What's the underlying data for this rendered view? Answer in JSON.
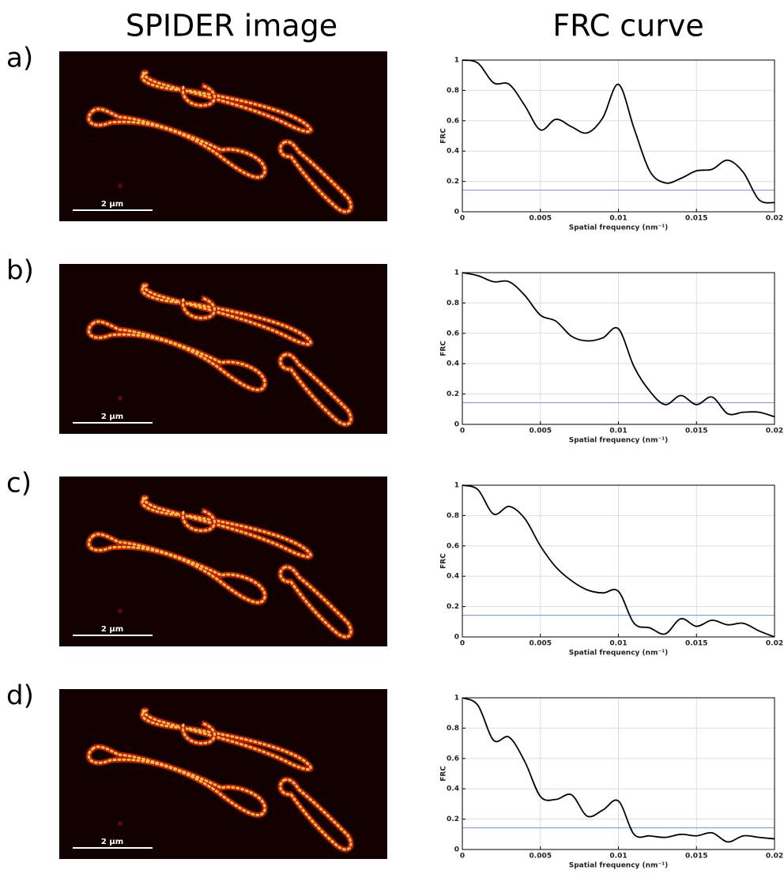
{
  "column_titles": [
    "SPIDER image",
    "FRC curve"
  ],
  "panel_labels": [
    "a)",
    "b)",
    "c)",
    "d)"
  ],
  "scale_bar_labels": [
    "2 μm",
    "2 μm",
    "2 μm",
    "2 μm"
  ],
  "chart_data": [
    {
      "type": "line",
      "xlabel": "Spatial frequency (nm⁻¹)",
      "ylabel": "FRC",
      "x": [
        0,
        0.001,
        0.002,
        0.003,
        0.004,
        0.005,
        0.006,
        0.007,
        0.008,
        0.009,
        0.01,
        0.011,
        0.012,
        0.013,
        0.014,
        0.015,
        0.016,
        0.017,
        0.018,
        0.019,
        0.02
      ],
      "values": [
        1.0,
        0.98,
        0.85,
        0.84,
        0.7,
        0.54,
        0.61,
        0.56,
        0.52,
        0.62,
        0.84,
        0.55,
        0.27,
        0.19,
        0.22,
        0.27,
        0.28,
        0.34,
        0.26,
        0.08,
        0.06
      ],
      "color": "#000000",
      "hline": {
        "value": 0.143,
        "color": "#7f9fe6"
      },
      "xlim": [
        0,
        0.02
      ],
      "ylim": [
        0,
        1
      ],
      "xticks": [
        0,
        0.005,
        0.01,
        0.015,
        0.02
      ],
      "yticks": [
        0,
        0.2,
        0.4,
        0.6,
        0.8,
        1
      ],
      "grid": true
    },
    {
      "type": "line",
      "xlabel": "Spatial frequency (nm⁻¹)",
      "ylabel": "FRC",
      "x": [
        0,
        0.001,
        0.002,
        0.003,
        0.004,
        0.005,
        0.006,
        0.007,
        0.008,
        0.009,
        0.01,
        0.011,
        0.012,
        0.013,
        0.014,
        0.015,
        0.016,
        0.017,
        0.018,
        0.019,
        0.02
      ],
      "values": [
        1.0,
        0.98,
        0.94,
        0.94,
        0.85,
        0.72,
        0.68,
        0.58,
        0.55,
        0.57,
        0.63,
        0.38,
        0.22,
        0.13,
        0.19,
        0.13,
        0.18,
        0.07,
        0.08,
        0.08,
        0.05
      ],
      "color": "#000000",
      "hline": {
        "value": 0.143,
        "color": "#7f9fe6"
      },
      "xlim": [
        0,
        0.02
      ],
      "ylim": [
        0,
        1
      ],
      "xticks": [
        0,
        0.005,
        0.01,
        0.015,
        0.02
      ],
      "yticks": [
        0,
        0.2,
        0.4,
        0.6,
        0.8,
        1
      ],
      "grid": true
    },
    {
      "type": "line",
      "xlabel": "Spatial frequency (nm⁻¹)",
      "ylabel": "FRC",
      "x": [
        0,
        0.001,
        0.002,
        0.003,
        0.004,
        0.005,
        0.006,
        0.007,
        0.008,
        0.009,
        0.01,
        0.011,
        0.012,
        0.013,
        0.014,
        0.015,
        0.016,
        0.017,
        0.018,
        0.019,
        0.02
      ],
      "values": [
        1.0,
        0.97,
        0.81,
        0.86,
        0.78,
        0.6,
        0.46,
        0.37,
        0.31,
        0.29,
        0.3,
        0.09,
        0.06,
        0.02,
        0.12,
        0.07,
        0.11,
        0.08,
        0.09,
        0.04,
        0.0
      ],
      "color": "#000000",
      "hline": {
        "value": 0.143,
        "color": "#7f9fe6"
      },
      "xlim": [
        0,
        0.02
      ],
      "ylim": [
        0,
        1
      ],
      "xticks": [
        0,
        0.005,
        0.01,
        0.015,
        0.02
      ],
      "yticks": [
        0,
        0.2,
        0.4,
        0.6,
        0.8,
        1
      ],
      "grid": true
    },
    {
      "type": "line",
      "xlabel": "Spatial frequency (nm⁻¹)",
      "ylabel": "FRC",
      "x": [
        0,
        0.001,
        0.002,
        0.003,
        0.004,
        0.005,
        0.006,
        0.007,
        0.008,
        0.009,
        0.01,
        0.011,
        0.012,
        0.013,
        0.014,
        0.015,
        0.016,
        0.017,
        0.018,
        0.019,
        0.02
      ],
      "values": [
        1.0,
        0.95,
        0.72,
        0.74,
        0.58,
        0.35,
        0.33,
        0.36,
        0.22,
        0.26,
        0.32,
        0.1,
        0.09,
        0.08,
        0.1,
        0.09,
        0.11,
        0.05,
        0.09,
        0.08,
        0.07
      ],
      "color": "#000000",
      "hline": {
        "value": 0.143,
        "color": "#7f9fe6"
      },
      "xlim": [
        0,
        0.02
      ],
      "ylim": [
        0,
        1
      ],
      "xticks": [
        0,
        0.005,
        0.01,
        0.015,
        0.02
      ],
      "yticks": [
        0,
        0.2,
        0.4,
        0.6,
        0.8,
        1
      ],
      "grid": true
    }
  ]
}
